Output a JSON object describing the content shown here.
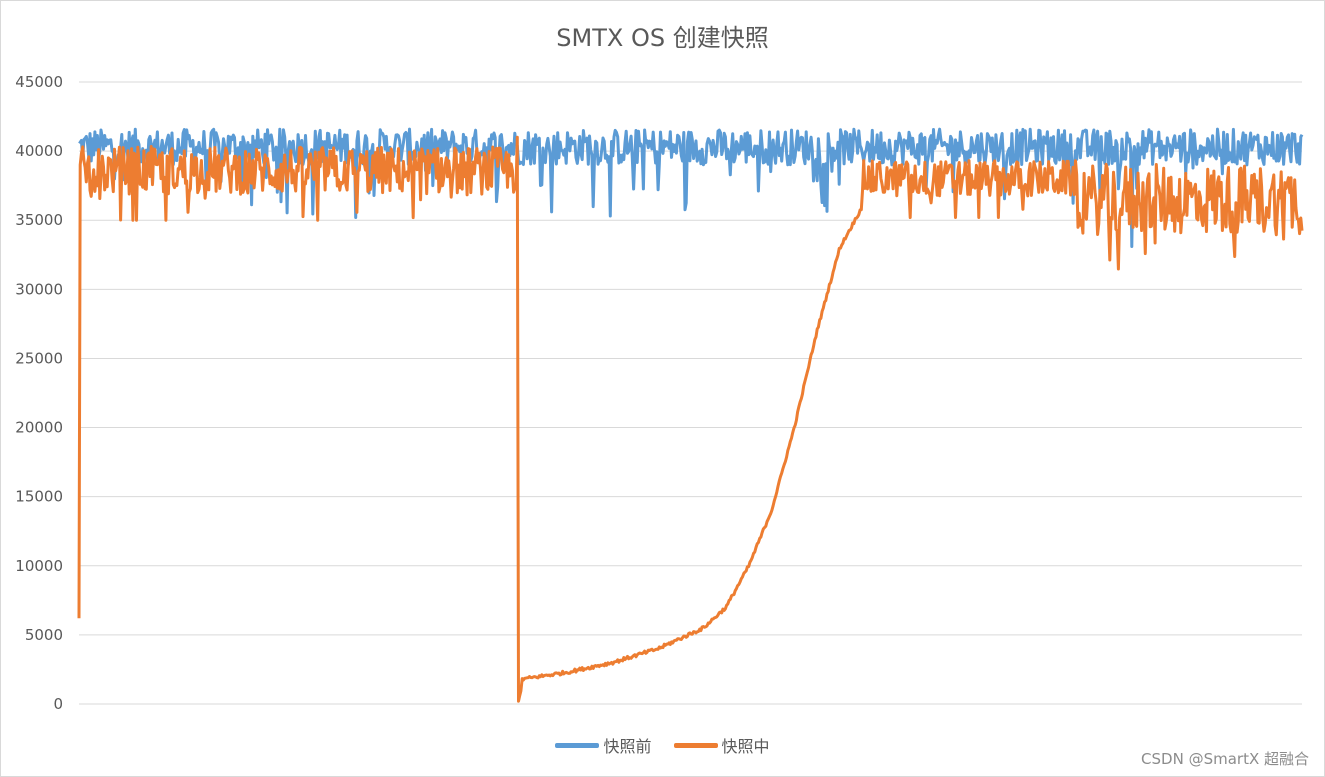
{
  "chart_data": {
    "type": "line",
    "title": "SMTX OS 创建快照",
    "xlabel": "",
    "ylabel": "",
    "ylim": [
      0,
      45000
    ],
    "y_ticks": [
      "45000",
      "40000",
      "35000",
      "30000",
      "25000",
      "20000",
      "15000",
      "10000",
      "5000",
      "0"
    ],
    "grid": true,
    "legend_position": "bottom",
    "x_points": 1000,
    "series": [
      {
        "name": "快照前",
        "color": "#5b9bd5",
        "mean": 40300,
        "range": [
          33000,
          42300
        ],
        "description_values": {
          "typical_band": [
            38500,
            41800
          ],
          "min_dips": [
            35200,
            35600,
            33100
          ]
        }
      },
      {
        "name": "快照中",
        "color": "#ed7d31",
        "phases": [
          {
            "x_start": 0,
            "x_end": 1,
            "values": [
              6200,
              39000
            ]
          },
          {
            "x_start": 1,
            "x_end": 358,
            "band": [
              35000,
              41300
            ],
            "mean": 38600
          },
          {
            "x_start": 358,
            "x_end": 360,
            "values": [
              41000,
              200
            ]
          },
          {
            "x_start": 360,
            "x_end": 362,
            "values": [
              200,
              1700
            ]
          },
          {
            "x_start": 362,
            "x_end": 510,
            "curve": [
              1800,
              2300,
              3000,
              4000,
              5500
            ]
          },
          {
            "x_start": 510,
            "x_end": 640,
            "curve": [
              5500,
              7000,
              10000,
              14000,
              20000,
              27000,
              33000,
              36000
            ]
          },
          {
            "x_start": 640,
            "x_end": 815,
            "band": [
              35200,
              40000
            ],
            "mean": 38000
          },
          {
            "x_start": 815,
            "x_end": 1000,
            "band": [
              30500,
              39800
            ],
            "mean": 36500
          }
        ]
      }
    ]
  },
  "legend": {
    "series1": "快照前",
    "series2": "快照中"
  },
  "watermark": "CSDN @SmartX 超融合"
}
